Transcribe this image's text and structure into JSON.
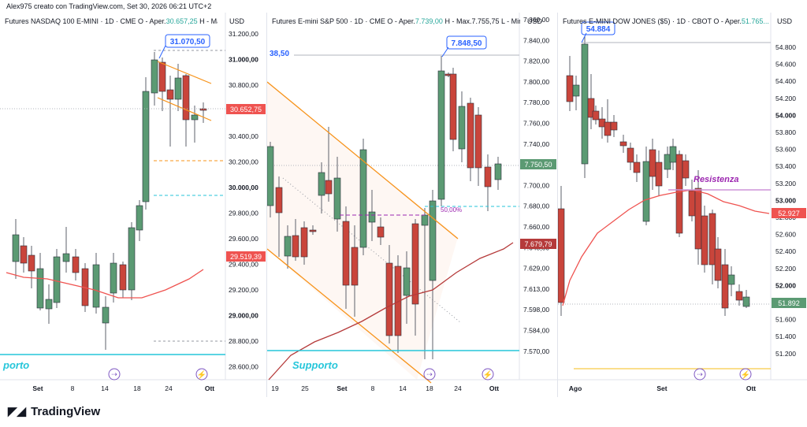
{
  "header": {
    "creator": "Alex975 creato con TradingView.com, Set 30, 2026 06:21 UTC+2"
  },
  "footer": {
    "brand": "TradingView"
  },
  "colors": {
    "up": "#5b9a73",
    "down": "#c9453b",
    "orange": "#f7931a",
    "cyan": "#26c6da",
    "ma": "#ef5350",
    "purple": "#9c27b0"
  },
  "panels": [
    {
      "title_prefix": "Futures NASDAQ 100 E-MINI · 1D · CME  O - Aper.",
      "title_open": "30.657,25",
      "title_suffix": "  H - Max.",
      "currency": "USD",
      "price_ticks": [
        "31.200,00",
        "31.000,00",
        "30.800,00",
        "30.600,00",
        "30.400,00",
        "30.200,00",
        "30.000,00",
        "29.800,00",
        "29.600,00",
        "29.400,00",
        "29.200,00",
        "29.000,00",
        "28.800,00",
        "28.600,00"
      ],
      "bold_ticks": [
        "31.000,00",
        "30.000,00",
        "29.000,00"
      ],
      "date_ticks": [
        "Set",
        "8",
        "14",
        "18",
        "24",
        "Ott"
      ],
      "callout": "31.070,50",
      "price_label_1": "30.652,75",
      "price_label_2": "29.519,39",
      "support_text": "porto"
    },
    {
      "title_prefix": "Futures E-mini S&P 500 · 1D · CME  O - Aper.",
      "title_open": "7.739,00",
      "title_suffix": "  H - Max.7.755,75  L - Min.",
      "currency": "USD",
      "price_ticks": [
        "7.860,00",
        "7.840,00",
        "7.820,00",
        "7.800,00",
        "7.780,00",
        "7.760,00",
        "7.740,00",
        "7.720,00",
        "7.700,00",
        "7.680,00",
        "7.660,00",
        "7.645,00",
        "7.629,00",
        "7.613,00",
        "7.598,00",
        "7.584,00",
        "7.570,00"
      ],
      "date_ticks": [
        "19",
        "25",
        "Set",
        "8",
        "14",
        "18",
        "24",
        "Ott"
      ],
      "callout": "7.848,50",
      "left_tag": "38,50",
      "fib_label": "50,00%",
      "price_label_1": "7.750,50",
      "price_label_2": "7.679,79",
      "support_text": "Supporto"
    },
    {
      "title_prefix": "Futures E-MINI DOW JONES ($5) · 1D · CBOT  O - Aper.",
      "title_open": "51.765...",
      "currency": "USD",
      "price_ticks": [
        "54.800",
        "54.600",
        "54.400",
        "54.200",
        "54.000",
        "53.800",
        "53.600",
        "53.400",
        "53.200",
        "53.000",
        "52.800",
        "52.600",
        "52.400",
        "52.200",
        "52.000",
        "51.800",
        "51.600",
        "51.400",
        "51.200"
      ],
      "bold_ticks": [
        "54.000",
        "53.000",
        "52.000"
      ],
      "date_ticks": [
        "Ago",
        "Set",
        "Ott"
      ],
      "callout": "54.884",
      "resistance_text": "Resistenza",
      "price_label_1": "52.927",
      "price_label_2": "51.892"
    }
  ]
}
